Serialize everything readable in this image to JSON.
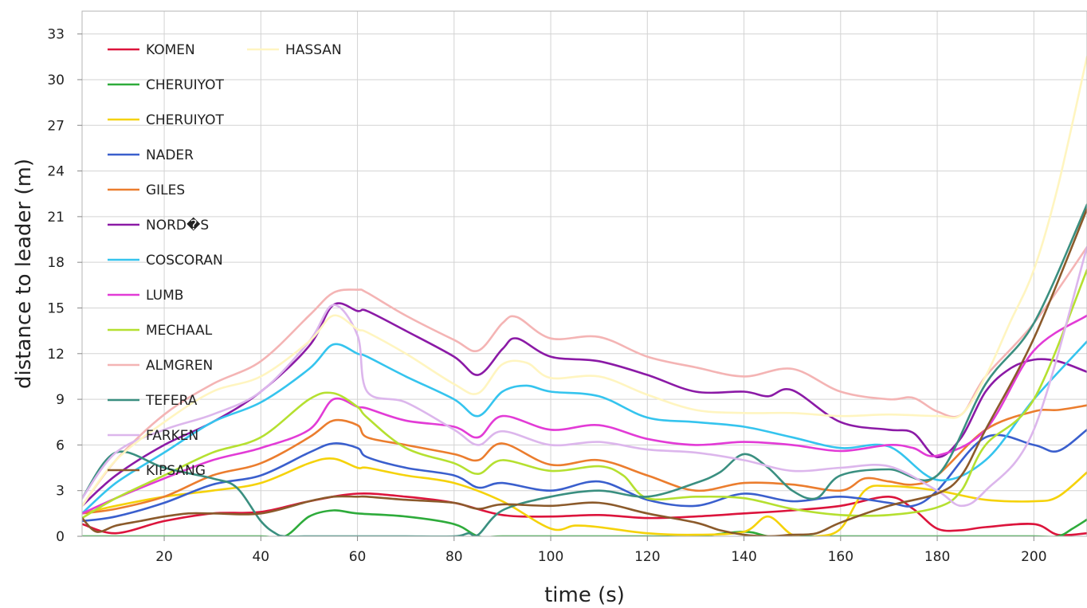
{
  "chart_data": {
    "type": "line",
    "title": "",
    "xlabel": "time (s)",
    "ylabel": "distance to leader (m)",
    "xlim": [
      3,
      211
    ],
    "ylim": [
      0,
      34.5
    ],
    "xticks": [
      20,
      40,
      60,
      80,
      100,
      120,
      140,
      160,
      180,
      200
    ],
    "yticks": [
      0,
      3,
      6,
      9,
      12,
      15,
      18,
      21,
      24,
      27,
      30,
      33
    ],
    "grid": true,
    "legend_position": "top-left",
    "series": [
      {
        "name": "KOMEN",
        "color": "#dc143c",
        "x": [
          3,
          10,
          20,
          30,
          40,
          50,
          60,
          70,
          80,
          90,
          100,
          110,
          120,
          130,
          140,
          150,
          160,
          170,
          175,
          180,
          185,
          190,
          200,
          205,
          211
        ],
        "y": [
          0.8,
          0.2,
          1.0,
          1.5,
          1.6,
          2.3,
          2.8,
          2.6,
          2.2,
          1.4,
          1.3,
          1.4,
          1.2,
          1.3,
          1.5,
          1.7,
          2.0,
          2.6,
          1.8,
          0.5,
          0.4,
          0.6,
          0.8,
          0.1,
          0.2
        ]
      },
      {
        "name": "CHERUIYOT",
        "color": "#2eab3b",
        "x": [
          3,
          10,
          20,
          30,
          40,
          45,
          50,
          55,
          60,
          70,
          80,
          85,
          90,
          100,
          110,
          120,
          130,
          140,
          145,
          150,
          160,
          170,
          180,
          190,
          200,
          205,
          208,
          211
        ],
        "y": [
          0,
          0,
          0,
          0,
          0,
          0,
          1.3,
          1.7,
          1.5,
          1.3,
          0.8,
          0,
          0,
          0,
          0,
          0,
          0,
          0.3,
          0,
          0,
          0,
          0,
          0,
          0,
          0,
          0,
          0.5,
          1.1
        ]
      },
      {
        "name": "CHERUIYOT",
        "color": "#f5d20a",
        "x": [
          3,
          10,
          20,
          30,
          40,
          50,
          55,
          60,
          62,
          70,
          80,
          90,
          100,
          105,
          110,
          120,
          130,
          140,
          145,
          150,
          155,
          160,
          165,
          170,
          180,
          190,
          200,
          205,
          211
        ],
        "y": [
          1.5,
          2.0,
          2.6,
          3.0,
          3.5,
          4.8,
          5.1,
          4.5,
          4.5,
          4.0,
          3.5,
          2.3,
          0.5,
          0.7,
          0.6,
          0.2,
          0.1,
          0.3,
          1.3,
          0.1,
          0,
          0.5,
          3.0,
          3.3,
          3.0,
          2.4,
          2.3,
          2.6,
          4.2
        ]
      },
      {
        "name": "NADER",
        "color": "#3a5fcd",
        "x": [
          3,
          10,
          20,
          30,
          40,
          50,
          55,
          60,
          62,
          70,
          80,
          85,
          90,
          100,
          110,
          120,
          130,
          140,
          150,
          160,
          170,
          175,
          180,
          190,
          200,
          205,
          211
        ],
        "y": [
          1.0,
          1.3,
          2.2,
          3.4,
          4.0,
          5.5,
          6.1,
          5.8,
          5.2,
          4.5,
          4.0,
          3.2,
          3.5,
          3.0,
          3.6,
          2.4,
          2.0,
          2.8,
          2.3,
          2.6,
          2.2,
          2.0,
          3.0,
          6.5,
          6.0,
          5.6,
          7.0
        ]
      },
      {
        "name": "GILES",
        "color": "#eb7d2e",
        "x": [
          3,
          10,
          20,
          30,
          40,
          50,
          55,
          60,
          62,
          70,
          80,
          85,
          90,
          100,
          110,
          120,
          130,
          140,
          150,
          160,
          165,
          170,
          175,
          180,
          190,
          200,
          205,
          211
        ],
        "y": [
          1.5,
          1.8,
          2.6,
          4.0,
          4.8,
          6.5,
          7.6,
          7.3,
          6.5,
          6.0,
          5.4,
          5.0,
          6.1,
          4.7,
          5.0,
          4.0,
          3.0,
          3.5,
          3.4,
          3.0,
          3.8,
          3.6,
          3.4,
          4.0,
          7.0,
          8.2,
          8.3,
          8.6
        ]
      },
      {
        "name": "NORD�S",
        "color": "#8b1aa6",
        "x": [
          3,
          10,
          20,
          30,
          40,
          50,
          55,
          60,
          62,
          70,
          80,
          85,
          90,
          93,
          100,
          110,
          120,
          130,
          140,
          145,
          150,
          160,
          170,
          175,
          180,
          185,
          190,
          195,
          200,
          205,
          211
        ],
        "y": [
          2.0,
          4.0,
          6.0,
          7.5,
          9.5,
          12.5,
          15.2,
          14.8,
          14.8,
          13.5,
          11.8,
          10.6,
          12.3,
          13.0,
          11.8,
          11.5,
          10.6,
          9.5,
          9.5,
          9.2,
          9.6,
          7.5,
          7.0,
          6.8,
          5.2,
          6.5,
          9.5,
          11.0,
          11.6,
          11.5,
          10.8
        ]
      },
      {
        "name": "COSCORAN",
        "color": "#35c4ee",
        "x": [
          3,
          10,
          20,
          30,
          40,
          50,
          55,
          60,
          62,
          70,
          80,
          85,
          90,
          95,
          100,
          110,
          120,
          130,
          140,
          150,
          160,
          170,
          180,
          190,
          200,
          211
        ],
        "y": [
          1.5,
          3.5,
          5.5,
          7.5,
          8.8,
          11.0,
          12.6,
          12.0,
          11.8,
          10.5,
          9.0,
          7.9,
          9.5,
          9.9,
          9.5,
          9.2,
          7.8,
          7.5,
          7.2,
          6.5,
          5.8,
          5.9,
          3.7,
          5.0,
          9.0,
          12.8
        ]
      },
      {
        "name": "LUMB",
        "color": "#e23bd6",
        "x": [
          3,
          10,
          20,
          30,
          40,
          50,
          55,
          60,
          62,
          70,
          80,
          85,
          90,
          100,
          110,
          120,
          130,
          140,
          150,
          160,
          170,
          175,
          180,
          190,
          200,
          211
        ],
        "y": [
          1.5,
          2.5,
          3.8,
          5.0,
          5.8,
          7.0,
          9.0,
          8.5,
          8.4,
          7.6,
          7.2,
          6.5,
          7.9,
          7.0,
          7.3,
          6.4,
          6.0,
          6.2,
          6.0,
          5.6,
          6.0,
          5.8,
          5.3,
          7.0,
          12.2,
          14.5
        ]
      },
      {
        "name": "MECHAAL",
        "color": "#b5e030",
        "x": [
          3,
          10,
          20,
          30,
          40,
          50,
          55,
          60,
          62,
          70,
          80,
          85,
          90,
          100,
          110,
          115,
          120,
          130,
          140,
          150,
          160,
          170,
          180,
          185,
          190,
          200,
          211
        ],
        "y": [
          1.2,
          2.5,
          4.0,
          5.5,
          6.5,
          9.0,
          9.4,
          8.5,
          7.8,
          5.8,
          4.8,
          4.1,
          5.0,
          4.3,
          4.6,
          4.0,
          2.5,
          2.6,
          2.5,
          1.8,
          1.4,
          1.4,
          1.9,
          3.0,
          6.0,
          9.0,
          17.5
        ]
      },
      {
        "name": "ALMGREN",
        "color": "#f4b4b4",
        "x": [
          3,
          10,
          20,
          30,
          40,
          50,
          55,
          60,
          62,
          70,
          80,
          85,
          90,
          93,
          100,
          110,
          120,
          130,
          140,
          150,
          160,
          170,
          175,
          180,
          185,
          190,
          200,
          211
        ],
        "y": [
          2.0,
          5.0,
          8.0,
          10.0,
          11.5,
          14.5,
          16.0,
          16.2,
          16.0,
          14.5,
          12.9,
          12.2,
          14.0,
          14.4,
          13.0,
          13.1,
          11.8,
          11.1,
          10.5,
          11.0,
          9.5,
          9.0,
          9.1,
          8.2,
          8.0,
          10.5,
          14.0,
          19.0
        ]
      },
      {
        "name": "TEFERA",
        "color": "#3a8f80",
        "x": [
          3,
          10,
          20,
          30,
          35,
          40,
          43,
          45,
          50,
          55,
          60,
          62,
          70,
          80,
          83,
          85,
          90,
          100,
          110,
          120,
          130,
          135,
          140,
          145,
          150,
          155,
          160,
          170,
          180,
          190,
          200,
          211
        ],
        "y": [
          2.5,
          5.5,
          4.5,
          3.8,
          3.2,
          1.0,
          0.2,
          0,
          0,
          0,
          0,
          0,
          0,
          0,
          0.2,
          0.1,
          1.7,
          2.6,
          3.0,
          2.6,
          3.5,
          4.2,
          5.4,
          4.5,
          3.0,
          2.5,
          4.0,
          4.4,
          4.0,
          10.0,
          14.0,
          21.8
        ]
      },
      {
        "name": "FARKEN",
        "color": "#dcb6ec",
        "x": [
          3,
          10,
          20,
          30,
          40,
          50,
          55,
          60,
          62,
          70,
          80,
          85,
          90,
          100,
          110,
          120,
          130,
          140,
          150,
          160,
          170,
          180,
          185,
          190,
          200,
          211
        ],
        "y": [
          2.5,
          5.5,
          7.0,
          8.0,
          9.5,
          12.8,
          15.2,
          13.2,
          9.5,
          8.8,
          7.0,
          6.0,
          6.9,
          6.0,
          6.2,
          5.7,
          5.5,
          5.0,
          4.3,
          4.5,
          4.6,
          3.0,
          2.0,
          3.0,
          7.0,
          19.0
        ]
      },
      {
        "name": "KIPSANG",
        "color": "#8b5a2b",
        "x": [
          3,
          6,
          10,
          15,
          20,
          25,
          30,
          40,
          50,
          55,
          60,
          62,
          70,
          80,
          85,
          90,
          100,
          110,
          120,
          130,
          135,
          140,
          145,
          150,
          155,
          160,
          170,
          180,
          185,
          190,
          200,
          211
        ],
        "y": [
          1.2,
          0.3,
          0.7,
          1.0,
          1.3,
          1.5,
          1.5,
          1.5,
          2.3,
          2.6,
          2.6,
          2.6,
          2.4,
          2.2,
          1.8,
          2.1,
          2.0,
          2.2,
          1.5,
          0.9,
          0.4,
          0.1,
          0,
          0.1,
          0.2,
          0.9,
          2.0,
          2.8,
          4.0,
          7.0,
          13.0,
          21.5
        ]
      },
      {
        "name": "HASSAN",
        "color": "#fff5c0",
        "x": [
          3,
          10,
          20,
          30,
          40,
          50,
          55,
          60,
          62,
          70,
          80,
          85,
          90,
          95,
          100,
          110,
          120,
          130,
          140,
          150,
          160,
          170,
          180,
          185,
          190,
          195,
          200,
          205,
          211
        ],
        "y": [
          2.0,
          5.0,
          7.5,
          9.5,
          10.5,
          12.8,
          14.5,
          13.6,
          13.4,
          12.0,
          10.0,
          9.4,
          11.3,
          11.4,
          10.4,
          10.5,
          9.3,
          8.3,
          8.1,
          8.1,
          7.9,
          8.0,
          7.9,
          8.0,
          10.5,
          14.0,
          17.5,
          23.0,
          31.5
        ]
      }
    ]
  }
}
